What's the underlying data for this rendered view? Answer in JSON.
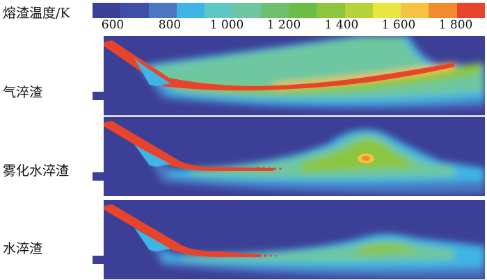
{
  "legend": {
    "title": "熔渣温度/K",
    "colors": [
      "#3c3f96",
      "#3f4fa8",
      "#4a76c2",
      "#40b4e4",
      "#5ec8c4",
      "#6ec7a0",
      "#6fc06e",
      "#6bbd45",
      "#8cc63f",
      "#b6d43a",
      "#e8e641",
      "#f5c242",
      "#f18b2e",
      "#e8442c"
    ],
    "ticks": [
      "600",
      "800",
      "1 000",
      "1 200",
      "1 400",
      "1 600",
      "1 800"
    ]
  },
  "panels": [
    {
      "label": "气淬渣"
    },
    {
      "label": "雾化水淬渣"
    },
    {
      "label": "水淬渣"
    }
  ]
}
